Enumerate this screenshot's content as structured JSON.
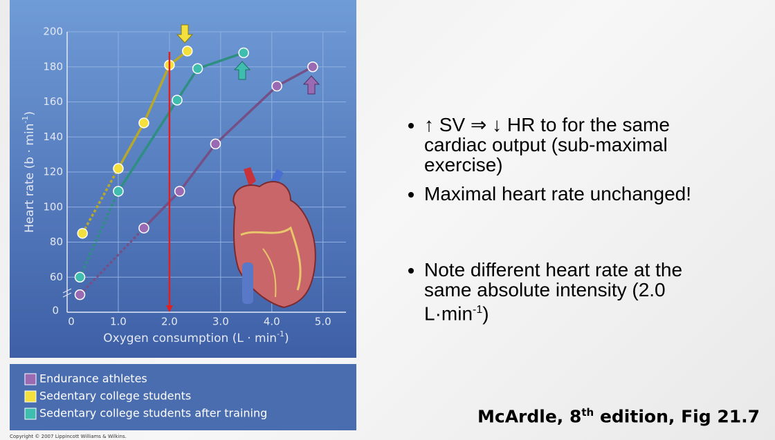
{
  "chart_data": {
    "type": "line",
    "x_label": "Oxygen consumption (L · min",
    "x_label_sup": "-1",
    "x_label_end": ")",
    "y_label": "Heart rate (b · min",
    "y_label_sup": "-1",
    "y_label_end": ")",
    "y_break_label": "0",
    "xlim": [
      0,
      5.45
    ],
    "ylim": [
      40,
      200
    ],
    "xticks": [
      0,
      {
        "value": 1,
        "label": "1.0"
      },
      {
        "value": 2,
        "label": "2.0"
      },
      {
        "value": 3,
        "label": "3.0"
      },
      {
        "value": 4,
        "label": "4.0"
      },
      {
        "value": 5,
        "label": "5.0"
      }
    ],
    "yticks": [
      60,
      80,
      100,
      120,
      140,
      160,
      180,
      200
    ],
    "grid": true,
    "reference_x": 2,
    "legend": "bottom",
    "series": [
      {
        "name": "Endurance athletes",
        "color": "#9a6bb3",
        "x": [
          0.25,
          1.5,
          2.2,
          2.9,
          4.1,
          4.8
        ],
        "values": [
          50,
          88,
          109,
          136,
          169,
          180
        ]
      },
      {
        "name": "Sedentary college students",
        "color": "#f3e03c",
        "x": [
          0.3,
          1.0,
          1.5,
          2.0,
          2.35
        ],
        "values": [
          85,
          122,
          148,
          181,
          189
        ]
      },
      {
        "name": "Sedentary college students after training",
        "color": "#3fbdae",
        "x": [
          0.25,
          1.0,
          2.15,
          2.55,
          3.45
        ],
        "values": [
          60,
          109,
          161,
          179,
          188
        ]
      }
    ]
  },
  "copyright": "Copyright © 2007 Lippincott Williams & Wilkins.",
  "bullets": [
    {
      "text": "↑ SV ⇒ ↓ HR to for the same cardiac output (sub-maximal exercise)"
    },
    {
      "text": "Maximal heart rate unchanged!"
    },
    {
      "text": "Note different heart rate at the same absolute intensity (2.0 L·min",
      "sup": "-1",
      "end": ")"
    }
  ],
  "citation": {
    "pre": "McArdle, 8",
    "sup": "th",
    "post": " edition, Fig 21.7"
  }
}
